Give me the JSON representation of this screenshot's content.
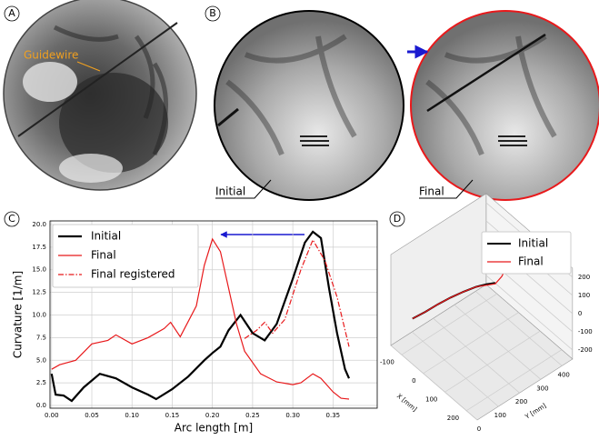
{
  "panels": {
    "a": "A",
    "b": "B",
    "c": "C",
    "d": "D"
  },
  "annotations": {
    "guidewire": "Guidewire",
    "initial": "Initial",
    "final": "Final"
  },
  "chart_data": [
    {
      "type": "line",
      "xlabel": "Arc length [m]",
      "ylabel": "Curvature [1/m]",
      "xlim": [
        -0.002,
        0.405
      ],
      "ylim": [
        -0.3,
        20.4
      ],
      "grid": true,
      "legend": "upper left",
      "xticks": [
        {
          "value": 0,
          "label": "0.00"
        },
        {
          "value": 0.05,
          "label": "0.05"
        },
        {
          "value": 0.1,
          "label": "0.10"
        },
        {
          "value": 0.15,
          "label": "0.15"
        },
        {
          "value": 0.2,
          "label": "0.20"
        },
        {
          "value": 0.25,
          "label": "0.25"
        },
        {
          "value": 0.3,
          "label": "0.30"
        },
        {
          "value": 0.35,
          "label": "0.35"
        }
      ],
      "yticks": [
        {
          "value": 0,
          "label": "0.0"
        },
        {
          "value": 2.5,
          "label": "2.5"
        },
        {
          "value": 5,
          "label": "5.0"
        },
        {
          "value": 7.5,
          "label": "7.5"
        },
        {
          "value": 10,
          "label": "10.0"
        },
        {
          "value": 12.5,
          "label": "12.5"
        },
        {
          "value": 15,
          "label": "15.0"
        },
        {
          "value": 17.5,
          "label": "17.5"
        },
        {
          "value": 20,
          "label": "20.0"
        }
      ],
      "series": [
        {
          "name": "Initial",
          "color": "#000000",
          "dash": "solid",
          "width": 2.2,
          "x": [
            0,
            0.005,
            0.015,
            0.025,
            0.04,
            0.06,
            0.08,
            0.1,
            0.12,
            0.13,
            0.15,
            0.17,
            0.19,
            0.2,
            0.21,
            0.22,
            0.235,
            0.25,
            0.265,
            0.28,
            0.3,
            0.315,
            0.325,
            0.335,
            0.345,
            0.355,
            0.365,
            0.37
          ],
          "y": [
            3.5,
            1.2,
            1.1,
            0.5,
            2,
            3.5,
            3,
            2,
            1.2,
            0.7,
            1.8,
            3.2,
            5,
            5.8,
            6.5,
            8.3,
            10,
            8,
            7.2,
            9,
            14,
            18,
            19.2,
            18.5,
            13,
            8,
            4,
            3
          ]
        },
        {
          "name": "Final",
          "color": "#e8191b",
          "dash": "solid",
          "width": 1.2,
          "x": [
            0,
            0.01,
            0.03,
            0.05,
            0.07,
            0.08,
            0.1,
            0.12,
            0.14,
            0.148,
            0.16,
            0.18,
            0.19,
            0.2,
            0.21,
            0.22,
            0.23,
            0.24,
            0.26,
            0.28,
            0.3,
            0.31,
            0.325,
            0.335,
            0.35,
            0.36,
            0.37
          ],
          "y": [
            4,
            4.5,
            5,
            6.8,
            7.2,
            7.8,
            6.8,
            7.5,
            8.5,
            9.2,
            7.6,
            11,
            15.5,
            18.4,
            17,
            13,
            9,
            6,
            3.5,
            2.6,
            2.3,
            2.5,
            3.5,
            3,
            1.5,
            0.8,
            0.7
          ]
        },
        {
          "name": "Final  registered",
          "color": "#e8191b",
          "dash": "dashdot",
          "width": 1.2,
          "x": [
            0.24,
            0.255,
            0.265,
            0.275,
            0.29,
            0.31,
            0.325,
            0.34,
            0.355,
            0.37
          ],
          "y": [
            7.4,
            8.3,
            9.2,
            8,
            9.5,
            15,
            18.3,
            16,
            12,
            6.5
          ]
        }
      ]
    },
    {
      "type": "line3d",
      "xlabel": "X [mm]",
      "ylabel": "Y [mm]",
      "xlim": [
        -150,
        250
      ],
      "ylim": [
        0,
        450
      ],
      "zlim": [
        -250,
        250
      ],
      "legend": "upper right",
      "xticks": [
        -100,
        0,
        100,
        200
      ],
      "yticks": [
        0,
        100,
        200,
        300,
        400
      ],
      "zticks": [
        -200,
        -100,
        0,
        100,
        200
      ],
      "series": [
        {
          "name": "Initial",
          "color": "#000000",
          "width": 2,
          "x": [
            -50,
            -40,
            -30,
            -20,
            -10,
            0,
            10,
            20
          ],
          "y": [
            0,
            50,
            100,
            150,
            200,
            250,
            290,
            320
          ],
          "z": [
            0,
            10,
            25,
            35,
            40,
            40,
            35,
            30
          ]
        },
        {
          "name": "Final",
          "color": "#e8191b",
          "width": 1.2,
          "x": [
            -50,
            -40,
            -30,
            -20,
            -10,
            0,
            10,
            20,
            30,
            40
          ],
          "y": [
            0,
            50,
            100,
            150,
            200,
            250,
            290,
            320,
            340,
            350
          ],
          "z": [
            0,
            10,
            25,
            35,
            40,
            40,
            30,
            25,
            60,
            110
          ]
        }
      ]
    }
  ]
}
